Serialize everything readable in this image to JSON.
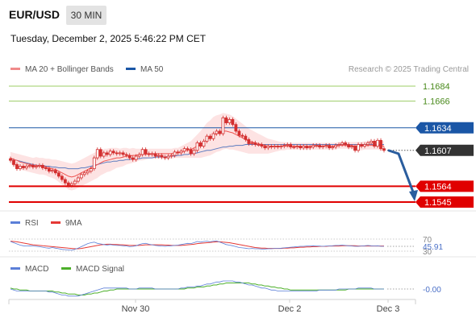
{
  "header": {
    "pair": "EUR/USD",
    "timeframe": "30 MIN",
    "datetime": "Tuesday, December 2, 2025 5:46:22 PM CET",
    "credit": "Research © 2025 Trading Central"
  },
  "legend": {
    "ma20_bb": "MA 20 + Bollinger Bands",
    "ma50": "MA 50",
    "rsi": "RSI",
    "rsi_ma": "9MA",
    "macd": "MACD",
    "macd_signal": "MACD Signal"
  },
  "colors": {
    "candle": "#d32f2f",
    "ma20": "#ef5350",
    "bollinger_fill": "#fde0e0",
    "ma50": "#5c7cc0",
    "resistance": "#9ccc65",
    "pivot": "#1a56a6",
    "support": "#e00000",
    "current": "#333333",
    "rsi": "#5b7fd8",
    "rsi_ma": "#e53935",
    "macd": "#5b7fd8",
    "macd_signal": "#4caf2a",
    "forecast_arrow": "#2a5d9e"
  },
  "chart_data": [
    {
      "type": "candlestick",
      "title": "EUR/USD",
      "x_ticks": [
        "Nov 30",
        "Dec 2",
        "Dec 3"
      ],
      "ylim": [
        1.1535,
        1.1695
      ],
      "levels": [
        {
          "value": 1.1684,
          "label": "1.1684",
          "kind": "resistance"
        },
        {
          "value": 1.1666,
          "label": "1.1666",
          "kind": "resistance"
        },
        {
          "value": 1.1634,
          "label": "1.1634",
          "kind": "pivot"
        },
        {
          "value": 1.1607,
          "label": "1.1607",
          "kind": "current"
        },
        {
          "value": 1.1564,
          "label": "1.1564",
          "kind": "support"
        },
        {
          "value": 1.1545,
          "label": "1.1545",
          "kind": "support"
        }
      ],
      "close": [
        1.1595,
        1.159,
        1.1585,
        1.1588,
        1.1586,
        1.1588,
        1.1589,
        1.1587,
        1.1588,
        1.1589,
        1.1586,
        1.1585,
        1.1582,
        1.1583,
        1.158,
        1.1576,
        1.1572,
        1.1568,
        1.1565,
        1.1567,
        1.157,
        1.1574,
        1.1578,
        1.158,
        1.1582,
        1.1585,
        1.1598,
        1.1608,
        1.16,
        1.1604,
        1.1602,
        1.1606,
        1.1604,
        1.1603,
        1.1604,
        1.1602,
        1.1601,
        1.1598,
        1.1596,
        1.16,
        1.1602,
        1.1608,
        1.1603,
        1.1602,
        1.1603,
        1.16,
        1.1601,
        1.1599,
        1.1598,
        1.16,
        1.1601,
        1.1605,
        1.1604,
        1.1606,
        1.1609,
        1.1608,
        1.1603,
        1.1607,
        1.1616,
        1.1612,
        1.1618,
        1.1624,
        1.1621,
        1.1627,
        1.163,
        1.1627,
        1.1646,
        1.164,
        1.1644,
        1.1638,
        1.163,
        1.1625,
        1.1624,
        1.162,
        1.1615,
        1.1616,
        1.1614,
        1.1614,
        1.1612,
        1.161,
        1.1612,
        1.1611,
        1.1612,
        1.1611,
        1.1612,
        1.1613,
        1.1614,
        1.1611,
        1.1611,
        1.1612,
        1.161,
        1.1612,
        1.161,
        1.1611,
        1.1613,
        1.1613,
        1.1611,
        1.1612,
        1.1613,
        1.161,
        1.1611,
        1.1613,
        1.1614,
        1.1616,
        1.1614,
        1.1611,
        1.1612,
        1.1607,
        1.1614,
        1.1612,
        1.1614,
        1.1616,
        1.1618,
        1.1612,
        1.1619,
        1.1609,
        1.1607
      ],
      "ma20": [
        1.1598,
        1.1596,
        1.1595,
        1.1593,
        1.1592,
        1.1591,
        1.159,
        1.1589,
        1.1589,
        1.1588,
        1.1588,
        1.1587,
        1.1586,
        1.1585,
        1.1584,
        1.1582,
        1.158,
        1.1578,
        1.1576,
        1.1575,
        1.1576,
        1.1578,
        1.158,
        1.1582,
        1.1584,
        1.1586,
        1.1588,
        1.159,
        1.1592,
        1.1594,
        1.1595,
        1.1596,
        1.1597,
        1.1598,
        1.1598,
        1.1599,
        1.16,
        1.16,
        1.1601,
        1.1601,
        1.1602,
        1.1602,
        1.1602,
        1.1603,
        1.1603,
        1.1603,
        1.1603,
        1.1603,
        1.1603,
        1.1603,
        1.1603,
        1.1604,
        1.1604,
        1.1605,
        1.1606,
        1.1607,
        1.1608,
        1.161,
        1.1612,
        1.1614,
        1.1617,
        1.162,
        1.1622,
        1.1625,
        1.1627,
        1.1628,
        1.163,
        1.163,
        1.1629,
        1.1628,
        1.1626,
        1.1624,
        1.1622,
        1.162,
        1.1618,
        1.1617,
        1.1616,
        1.1615,
        1.1614,
        1.1613,
        1.1612,
        1.1612,
        1.1612,
        1.1612,
        1.1612,
        1.1612,
        1.1612,
        1.1612,
        1.1612,
        1.1612,
        1.1612,
        1.1612,
        1.1612,
        1.1612,
        1.1612,
        1.1612,
        1.1612,
        1.1612,
        1.1612,
        1.1612,
        1.1612,
        1.1612,
        1.1613,
        1.1613,
        1.1613,
        1.1613,
        1.1613,
        1.1612,
        1.1612,
        1.1612,
        1.1613,
        1.1613,
        1.1613,
        1.1613,
        1.1613,
        1.1613,
        1.1612
      ],
      "ma50": [
        1.1597,
        1.1596,
        1.1595,
        1.1594,
        1.1593,
        1.1592,
        1.1591,
        1.159,
        1.1589,
        1.1589,
        1.1589,
        1.1588,
        1.1588,
        1.1587,
        1.1587,
        1.1586,
        1.1586,
        1.1586,
        1.1585,
        1.1585,
        1.1585,
        1.1585,
        1.1586,
        1.1586,
        1.1587,
        1.1588,
        1.1589,
        1.159,
        1.1591,
        1.1592,
        1.1593,
        1.1593,
        1.1594,
        1.1594,
        1.1595,
        1.1595,
        1.1596,
        1.1596,
        1.1597,
        1.1597,
        1.1597,
        1.1598,
        1.1598,
        1.1598,
        1.1598,
        1.1599,
        1.1599,
        1.1599,
        1.1599,
        1.16,
        1.16,
        1.16,
        1.1601,
        1.1601,
        1.1602,
        1.1602,
        1.1603,
        1.1603,
        1.1604,
        1.1605,
        1.1606,
        1.1607,
        1.1607,
        1.1608,
        1.1609,
        1.161,
        1.1611,
        1.1611,
        1.1612,
        1.1612,
        1.1613,
        1.1613,
        1.1613,
        1.1614,
        1.1614,
        1.1614,
        1.1614,
        1.1614,
        1.1614,
        1.1614,
        1.1614,
        1.1614,
        1.1614,
        1.1614,
        1.1614,
        1.1614,
        1.1614,
        1.1614,
        1.1614,
        1.1614,
        1.1614,
        1.1614,
        1.1614,
        1.1614,
        1.1614,
        1.1614,
        1.1614,
        1.1614,
        1.1614,
        1.1614,
        1.1614,
        1.1614,
        1.1614,
        1.1614,
        1.1614,
        1.1614,
        1.1614,
        1.1614,
        1.1614,
        1.1614,
        1.1614,
        1.1614,
        1.1614,
        1.1614,
        1.1614,
        1.1614,
        1.1614
      ],
      "bb_width": [
        0.0007,
        0.0008,
        0.0008,
        0.0009,
        0.0009,
        0.0009,
        0.0009,
        0.0009,
        0.001,
        0.001,
        0.001,
        0.001,
        0.0011,
        0.0011,
        0.0012,
        0.0013,
        0.0014,
        0.0015,
        0.0016,
        0.0016,
        0.0016,
        0.0016,
        0.0016,
        0.0016,
        0.0016,
        0.0016,
        0.0016,
        0.0016,
        0.0015,
        0.0015,
        0.0014,
        0.0014,
        0.0013,
        0.0012,
        0.0011,
        0.0011,
        0.001,
        0.0009,
        0.0009,
        0.0008,
        0.0007,
        0.0007,
        0.0006,
        0.0006,
        0.0006,
        0.0006,
        0.0006,
        0.0006,
        0.0006,
        0.0006,
        0.0006,
        0.0006,
        0.0006,
        0.0007,
        0.0008,
        0.0009,
        0.001,
        0.0012,
        0.0014,
        0.0016,
        0.0018,
        0.002,
        0.0021,
        0.0022,
        0.0022,
        0.0022,
        0.0022,
        0.0021,
        0.0021,
        0.002,
        0.0019,
        0.0018,
        0.0017,
        0.0016,
        0.0015,
        0.0014,
        0.0013,
        0.0012,
        0.0011,
        0.001,
        0.0009,
        0.0008,
        0.0007,
        0.0006,
        0.0005,
        0.0005,
        0.0004,
        0.0004,
        0.0004,
        0.0004,
        0.0004,
        0.0004,
        0.0004,
        0.0004,
        0.0004,
        0.0004,
        0.0004,
        0.0004,
        0.0004,
        0.0004,
        0.0004,
        0.0004,
        0.0004,
        0.0004,
        0.0004,
        0.0004,
        0.0004,
        0.0005,
        0.0005,
        0.0005,
        0.0005,
        0.0005,
        0.0005,
        0.0005,
        0.0005,
        0.0006,
        0.0006
      ]
    },
    {
      "type": "line",
      "title": "RSI",
      "levels": [
        "70",
        "30"
      ],
      "value_label": "45.91",
      "ylim": [
        25,
        75
      ],
      "series": [
        {
          "name": "RSI",
          "values": [
            62,
            58,
            54,
            50,
            48,
            47,
            48,
            47,
            46,
            45,
            43,
            41,
            40,
            42,
            40,
            38,
            36,
            35,
            34,
            33,
            36,
            40,
            45,
            50,
            55,
            58,
            60,
            56,
            54,
            52,
            50,
            52,
            50,
            49,
            49,
            48,
            47,
            45,
            46,
            48,
            52,
            55,
            56,
            53,
            51,
            49,
            48,
            47,
            46,
            47,
            48,
            49,
            50,
            52,
            54,
            56,
            55,
            58,
            62,
            60,
            62,
            63,
            61,
            63,
            64,
            60,
            56,
            52,
            50,
            48,
            45,
            42,
            41,
            40,
            38,
            39,
            38,
            38,
            37,
            37,
            38,
            38,
            39,
            39,
            40,
            41,
            42,
            43,
            44,
            45,
            46,
            46,
            47,
            47,
            48,
            47,
            47,
            46,
            47,
            47,
            48,
            49,
            49,
            50,
            49,
            48,
            47,
            46,
            46,
            47,
            48,
            49,
            48,
            47,
            48,
            46,
            46
          ]
        },
        {
          "name": "9MA",
          "values": [
            63,
            62,
            61,
            59,
            57,
            55,
            53,
            51,
            50,
            49,
            48,
            47,
            46,
            45,
            44,
            43,
            42,
            41,
            40,
            39,
            38,
            38,
            39,
            41,
            43,
            45,
            47,
            49,
            51,
            52,
            53,
            53,
            52,
            52,
            51,
            51,
            50,
            49,
            49,
            49,
            49,
            50,
            51,
            51,
            51,
            51,
            51,
            51,
            50,
            50,
            49,
            49,
            49,
            49,
            50,
            51,
            52,
            53,
            55,
            56,
            57,
            58,
            59,
            60,
            61,
            61,
            60,
            59,
            58,
            56,
            54,
            52,
            50,
            48,
            46,
            44,
            42,
            41,
            40,
            40,
            39,
            39,
            39,
            39,
            39,
            40,
            40,
            41,
            41,
            42,
            43,
            43,
            44,
            44,
            45,
            45,
            46,
            46,
            46,
            47,
            47,
            47,
            47,
            48,
            48,
            48,
            48,
            48,
            47,
            47,
            47,
            47,
            47,
            47,
            47,
            47,
            47
          ]
        }
      ]
    },
    {
      "type": "line",
      "title": "MACD",
      "value_label": "-0.00",
      "ylim": [
        -0.0014,
        0.0014
      ],
      "series": [
        {
          "name": "MACD",
          "values": [
            0.0,
            -0.0001,
            -0.0002,
            -0.0002,
            -0.0002,
            -0.0002,
            -0.0002,
            -0.0002,
            -0.0002,
            -0.0002,
            -0.0002,
            -0.0002,
            -0.0003,
            -0.0003,
            -0.0004,
            -0.0005,
            -0.0006,
            -0.0006,
            -0.0007,
            -0.0007,
            -0.0007,
            -0.0007,
            -0.0006,
            -0.0005,
            -0.0004,
            -0.0003,
            -0.0002,
            -0.0001,
            0.0,
            0.0001,
            0.0001,
            0.0001,
            0.0001,
            0.0001,
            0.0001,
            0.0001,
            0.0001,
            0.0,
            0.0,
            0.0,
            0.0001,
            0.0001,
            0.0001,
            0.0001,
            0.0001,
            0.0,
            0.0,
            0.0,
            0.0,
            0.0,
            0.0,
            0.0,
            0.0,
            0.0001,
            0.0001,
            0.0002,
            0.0002,
            0.0002,
            0.0003,
            0.0003,
            0.0004,
            0.0005,
            0.0005,
            0.0006,
            0.0007,
            0.0007,
            0.0008,
            0.0008,
            0.0008,
            0.0008,
            0.0007,
            0.0007,
            0.0006,
            0.0005,
            0.0004,
            0.0004,
            0.0003,
            0.0002,
            0.0001,
            0.0001,
            0.0,
            -0.0001,
            -0.0001,
            -0.0002,
            -0.0002,
            -0.0002,
            -0.0002,
            -0.0002,
            -0.0002,
            -0.0002,
            -0.0002,
            -0.0002,
            -0.0002,
            -0.0002,
            -0.0002,
            -0.0002,
            -0.0001,
            -0.0001,
            -0.0001,
            -0.0001,
            -0.0001,
            -0.0001,
            0.0,
            0.0,
            0.0,
            0.0,
            0.0,
            0.0,
            0.0001,
            0.0001,
            0.0001,
            0.0001,
            0.0001,
            0.0,
            0.0,
            0.0,
            0.0
          ]
        },
        {
          "name": "MACD Signal",
          "values": [
            0.0001,
            0.0,
            0.0,
            -0.0001,
            -0.0001,
            -0.0001,
            -0.0002,
            -0.0002,
            -0.0002,
            -0.0002,
            -0.0002,
            -0.0002,
            -0.0002,
            -0.0002,
            -0.0003,
            -0.0003,
            -0.0004,
            -0.0004,
            -0.0005,
            -0.0005,
            -0.0005,
            -0.0006,
            -0.0006,
            -0.0006,
            -0.0005,
            -0.0005,
            -0.0004,
            -0.0004,
            -0.0003,
            -0.0002,
            -0.0002,
            -0.0001,
            -0.0001,
            0.0,
            0.0,
            0.0,
            0.0,
            0.0,
            0.0,
            0.0,
            0.0,
            0.0,
            0.0,
            0.0,
            0.0,
            0.0,
            0.0,
            0.0,
            0.0,
            0.0,
            0.0,
            0.0,
            0.0,
            0.0,
            0.0,
            0.0001,
            0.0001,
            0.0001,
            0.0002,
            0.0002,
            0.0002,
            0.0003,
            0.0003,
            0.0004,
            0.0004,
            0.0005,
            0.0005,
            0.0006,
            0.0006,
            0.0006,
            0.0006,
            0.0006,
            0.0006,
            0.0006,
            0.0006,
            0.0005,
            0.0005,
            0.0004,
            0.0004,
            0.0003,
            0.0003,
            0.0002,
            0.0002,
            0.0001,
            0.0001,
            0.0,
            0.0,
            -0.0001,
            -0.0001,
            -0.0001,
            -0.0001,
            -0.0001,
            -0.0001,
            -0.0001,
            -0.0001,
            -0.0001,
            -0.0001,
            -0.0001,
            -0.0001,
            -0.0001,
            -0.0001,
            -0.0001,
            -0.0001,
            -0.0001,
            -0.0001,
            0.0,
            0.0,
            0.0,
            0.0,
            0.0,
            0.0,
            0.0,
            0.0,
            0.0,
            0.0,
            0.0,
            0.0
          ]
        }
      ]
    }
  ]
}
